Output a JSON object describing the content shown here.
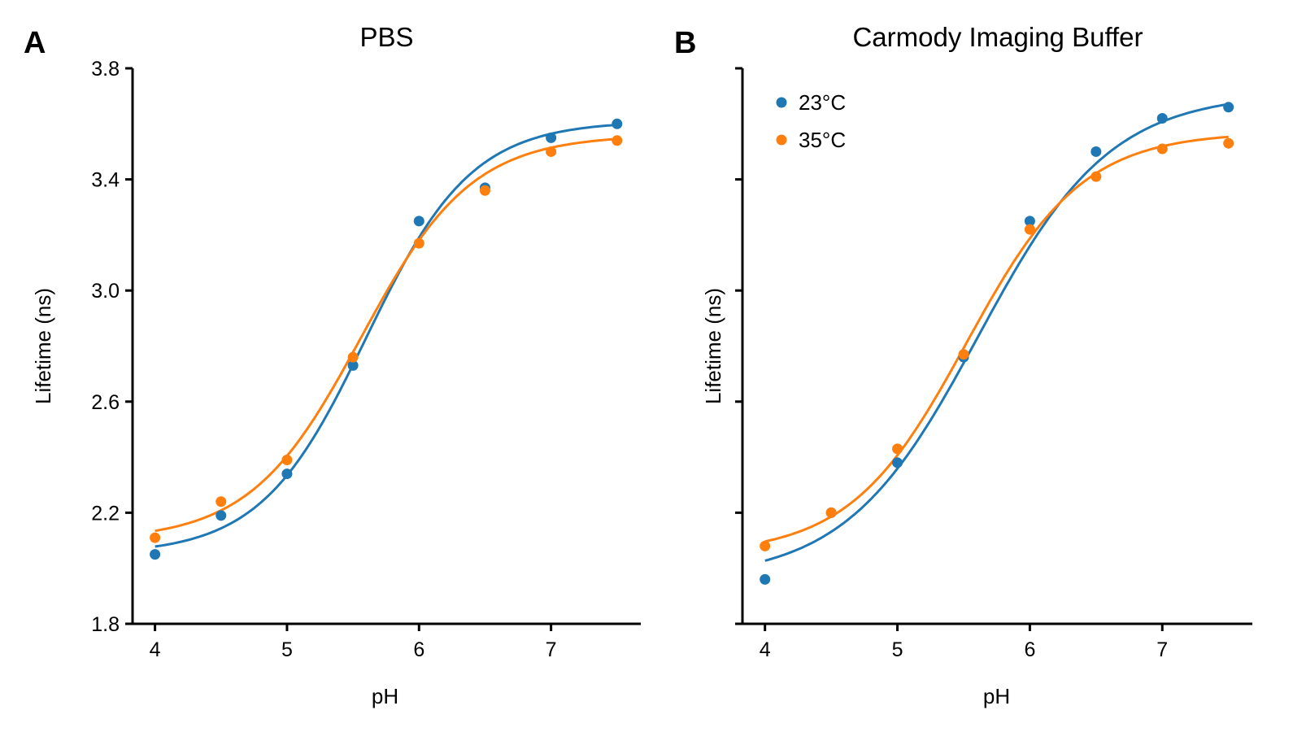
{
  "chart_data": [
    {
      "type": "scatter",
      "panel_label": "A",
      "title": "PBS",
      "xlabel": "pH",
      "ylabel": "Lifetime (ns)",
      "xlim": [
        3.83,
        7.68
      ],
      "ylim": [
        1.8,
        3.8
      ],
      "xticks": [
        4,
        5,
        6,
        7
      ],
      "yticks": [
        1.8,
        2.2,
        2.6,
        3.0,
        3.4,
        3.8
      ],
      "ytick_labels": [
        "1.8",
        "2.2",
        "2.6",
        "3.0",
        "3.4",
        "3.8"
      ],
      "show_ytick_labels": true,
      "legend": null,
      "series": [
        {
          "name": "23°C",
          "color": "#1f77b4",
          "x": [
            4.0,
            4.5,
            5.0,
            5.5,
            6.0,
            6.5,
            7.0,
            7.5
          ],
          "y": [
            2.05,
            2.19,
            2.34,
            2.73,
            3.25,
            3.37,
            3.55,
            3.6
          ],
          "fit": {
            "bottom": 2.05,
            "top": 3.61,
            "pKa": 5.6,
            "slope": 0.4
          }
        },
        {
          "name": "35°C",
          "color": "#ff7f0e",
          "x": [
            4.0,
            4.5,
            5.0,
            5.5,
            6.0,
            6.5,
            7.0,
            7.5
          ],
          "y": [
            2.11,
            2.24,
            2.39,
            2.76,
            3.17,
            3.36,
            3.5,
            3.54
          ],
          "fit": {
            "bottom": 2.1,
            "top": 3.56,
            "pKa": 5.56,
            "slope": 0.42
          }
        }
      ]
    },
    {
      "type": "scatter",
      "panel_label": "B",
      "title": "Carmody Imaging Buffer",
      "xlabel": "pH",
      "ylabel": "Lifetime (ns)",
      "xlim": [
        3.83,
        7.68
      ],
      "ylim": [
        1.8,
        3.8
      ],
      "xticks": [
        4,
        5,
        6,
        7
      ],
      "yticks": [
        1.8,
        2.2,
        2.6,
        3.0,
        3.4,
        3.8
      ],
      "show_ytick_labels": false,
      "legend": {
        "position": "top-left",
        "entries": [
          "23°C",
          "35°C"
        ]
      },
      "series": [
        {
          "name": "23°C",
          "color": "#1f77b4",
          "x": [
            4.0,
            4.5,
            5.0,
            5.5,
            6.0,
            6.5,
            7.0,
            7.5
          ],
          "y": [
            1.96,
            2.2,
            2.38,
            2.76,
            3.25,
            3.5,
            3.62,
            3.66
          ],
          "fit": {
            "bottom": 1.96,
            "top": 3.71,
            "pKa": 5.61,
            "slope": 0.5
          }
        },
        {
          "name": "35°C",
          "color": "#ff7f0e",
          "x": [
            4.0,
            4.5,
            5.0,
            5.5,
            6.0,
            6.5,
            7.0,
            7.5
          ],
          "y": [
            2.08,
            2.2,
            2.43,
            2.77,
            3.22,
            3.41,
            3.51,
            3.53
          ],
          "fit": {
            "bottom": 2.05,
            "top": 3.57,
            "pKa": 5.52,
            "slope": 0.44
          }
        }
      ]
    }
  ]
}
